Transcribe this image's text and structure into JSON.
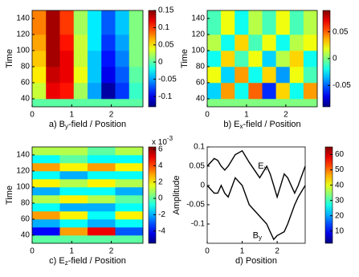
{
  "chart_data": [
    {
      "type": "heatmap",
      "caption": [
        "a) B",
        "y",
        "-field / Position"
      ],
      "ylabel": "Time",
      "xlim": [
        0,
        2.8
      ],
      "ylim": [
        30,
        150
      ],
      "xticks": [
        0,
        1,
        2
      ],
      "yticks": [
        40,
        60,
        80,
        100,
        120,
        140
      ],
      "xbins": [
        0,
        0.35,
        0.7,
        1.05,
        1.4,
        1.75,
        2.1,
        2.45,
        2.8
      ],
      "ybins": [
        30,
        40,
        60,
        80,
        100,
        120,
        150
      ],
      "z": [
        [
          0,
          0,
          0,
          0,
          0,
          0,
          0,
          0
        ],
        [
          0.03,
          0.12,
          0.11,
          0.02,
          -0.05,
          -0.12,
          -0.08,
          -0.01
        ],
        [
          0.05,
          0.13,
          0.12,
          0.04,
          -0.04,
          -0.1,
          -0.07,
          0
        ],
        [
          0.06,
          0.14,
          0.12,
          0.03,
          -0.04,
          -0.09,
          -0.06,
          0.01
        ],
        [
          0.07,
          0.14,
          0.11,
          0.03,
          -0.03,
          -0.08,
          -0.05,
          0.01
        ],
        [
          0.08,
          0.14,
          0.1,
          0.02,
          -0.03,
          -0.07,
          -0.04,
          0.01
        ]
      ],
      "clim": [
        -0.13,
        0.15
      ],
      "cticks": [
        -0.1,
        -0.05,
        0,
        0.05,
        0.1,
        0.15
      ]
    },
    {
      "type": "heatmap",
      "caption": [
        "b) E",
        "x",
        "-field / Position"
      ],
      "ylabel": "Time",
      "xlim": [
        0,
        2.8
      ],
      "ylim": [
        30,
        150
      ],
      "xticks": [
        0,
        1,
        2
      ],
      "yticks": [
        40,
        60,
        80,
        100,
        120,
        140
      ],
      "xbins": [
        0,
        0.35,
        0.7,
        1.05,
        1.4,
        1.75,
        2.1,
        2.45,
        2.8
      ],
      "ybins": [
        30,
        40,
        60,
        80,
        100,
        120,
        150
      ],
      "z": [
        [
          0,
          0,
          0,
          0,
          0,
          0,
          0,
          0
        ],
        [
          -0.03,
          0.04,
          -0.02,
          0.05,
          -0.06,
          0.03,
          -0.02,
          0.04
        ],
        [
          0.02,
          -0.03,
          0.04,
          -0.02,
          0.03,
          -0.04,
          0.02,
          -0.01
        ],
        [
          -0.02,
          0.03,
          -0.01,
          0.02,
          -0.03,
          0.01,
          0.03,
          -0.02
        ],
        [
          0.01,
          -0.02,
          0.03,
          -0.01,
          0.02,
          -0.02,
          0.01,
          0.02
        ],
        [
          -0.01,
          0.02,
          -0.02,
          0.01,
          -0.01,
          0.02,
          -0.01,
          0.01
        ]
      ],
      "clim": [
        -0.09,
        0.09
      ],
      "cticks": [
        -0.05,
        0,
        0.05
      ]
    },
    {
      "type": "heatmap",
      "caption": [
        "c) E",
        "z",
        "-field / Position"
      ],
      "ylabel": "Time",
      "xlim": [
        0,
        2.8
      ],
      "ylim": [
        30,
        150
      ],
      "xticks": [
        0,
        1,
        2
      ],
      "yticks": [
        40,
        60,
        80,
        100,
        120,
        140
      ],
      "xbins": [
        0,
        0.7,
        1.4,
        2.1,
        2.8
      ],
      "ybins": [
        30,
        40,
        50,
        60,
        70,
        80,
        90,
        100,
        110,
        120,
        130,
        140,
        150
      ],
      "z": [
        [
          0,
          0,
          0,
          0
        ],
        [
          -4,
          3,
          5,
          -3
        ],
        [
          -2,
          -1,
          -2,
          -1
        ],
        [
          3,
          2,
          -1,
          2
        ],
        [
          -1,
          -2,
          -2,
          -1
        ],
        [
          1,
          2,
          1,
          0
        ],
        [
          -2,
          -1,
          -1,
          -2
        ],
        [
          2,
          1,
          2,
          1
        ],
        [
          -1,
          -2,
          -1,
          -1
        ],
        [
          3,
          2,
          3,
          2
        ],
        [
          -1,
          0,
          -1,
          -1
        ],
        [
          1,
          1,
          0,
          1
        ]
      ],
      "clim": [
        -5.5,
        6.3
      ],
      "cticks": [
        -4,
        -2,
        0,
        2,
        4,
        6
      ],
      "cscale": [
        "x 10",
        "-3"
      ]
    },
    {
      "type": "line",
      "caption": [
        "d) Position"
      ],
      "ylabel": "Amplitude",
      "xlim": [
        0,
        2.8
      ],
      "ylim": [
        -0.15,
        0.1
      ],
      "xticks": [
        0,
        1,
        2
      ],
      "yticks": [
        -0.1,
        -0.05,
        0,
        0.05,
        0.1
      ],
      "x": [
        0,
        0.2,
        0.3,
        0.4,
        0.5,
        0.6,
        0.8,
        1.0,
        1.2,
        1.5,
        1.7,
        1.8,
        1.9,
        2.0,
        2.2,
        2.3,
        2.5,
        2.6,
        2.8
      ],
      "series": [
        {
          "name": [
            "E",
            "x"
          ],
          "color": "#000000",
          "values": [
            0.05,
            0.07,
            0.065,
            0.05,
            0.04,
            0.05,
            0.08,
            0.09,
            0.06,
            0.02,
            0.05,
            0.03,
            0.0,
            -0.03,
            0.03,
            0.02,
            -0.02,
            0.0,
            0.05
          ]
        },
        {
          "name": [
            "B",
            "y"
          ],
          "color": "#000000",
          "values": [
            0.0,
            -0.02,
            -0.02,
            0.0,
            -0.02,
            -0.03,
            0.02,
            0.0,
            -0.05,
            -0.08,
            -0.1,
            -0.12,
            -0.14,
            -0.13,
            -0.12,
            -0.1,
            -0.05,
            -0.03,
            0.0
          ]
        }
      ],
      "clim": [
        2,
        65
      ],
      "cticks": [
        10,
        20,
        30,
        40,
        50,
        60
      ]
    }
  ]
}
